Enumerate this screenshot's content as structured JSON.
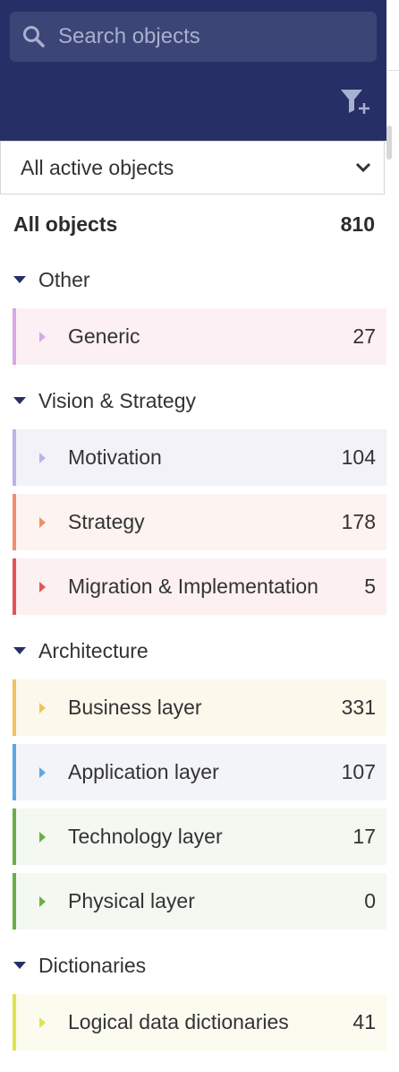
{
  "search": {
    "placeholder": "Search objects"
  },
  "dropdown": {
    "value": "All active objects"
  },
  "all_objects": {
    "label": "All objects",
    "count": "810"
  },
  "groups": [
    {
      "label": "Other"
    },
    {
      "label": "Vision & Strategy"
    },
    {
      "label": "Architecture"
    },
    {
      "label": "Dictionaries"
    }
  ],
  "items": [
    {
      "label": "Generic",
      "count": "27",
      "color": "#d9a8e6",
      "bg": "#fcf0f5"
    },
    {
      "label": "Motivation",
      "count": "104",
      "color": "#b9b4ea",
      "bg": "#f3f2f8"
    },
    {
      "label": "Strategy",
      "count": "178",
      "color": "#ef8e6c",
      "bg": "#fdf3f0"
    },
    {
      "label": "Migration & Implementation",
      "count": "5",
      "color": "#e2545a",
      "bg": "#fcf0f1"
    },
    {
      "label": "Business layer",
      "count": "331",
      "color": "#f1c35c",
      "bg": "#fdf8ec"
    },
    {
      "label": "Application layer",
      "count": "107",
      "color": "#5aa9e6",
      "bg": "#f2f4f9"
    },
    {
      "label": "Technology layer",
      "count": "17",
      "color": "#68b045",
      "bg": "#f3f8f1"
    },
    {
      "label": "Physical layer",
      "count": "0",
      "color": "#68b045",
      "bg": "#f3f8f1"
    },
    {
      "label": "Logical data dictionaries",
      "count": "41",
      "color": "#dfe34f",
      "bg": "#fbfbf0"
    }
  ],
  "icons": {
    "search": "search-icon",
    "filter": "filter-add-icon",
    "dropdown": "chevron-down-icon",
    "expand": "caret-down-icon",
    "collapse": "caret-right-icon"
  },
  "colors": {
    "header_bg": "#263066",
    "search_bg": "#3b4576"
  }
}
